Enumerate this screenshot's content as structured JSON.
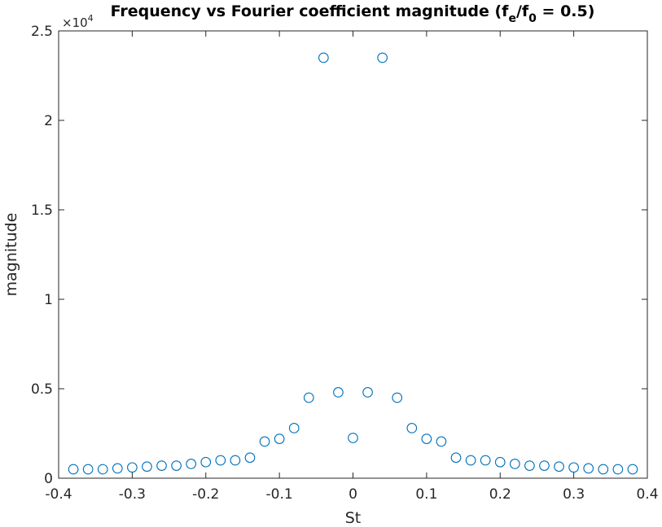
{
  "chart_data": {
    "type": "scatter",
    "title": {
      "main": "Frequency vs Fourier coefficient magnitude (f",
      "sub1": "e",
      "mid": "/f",
      "sub2": "0",
      "end": " = 0.5)"
    },
    "xlabel": "St",
    "ylabel": "magnitude",
    "y_exponent": {
      "base": "×10",
      "power": "4"
    },
    "xlim": [
      -0.4,
      0.4
    ],
    "ylim": [
      0,
      2.5
    ],
    "xticks": [
      -0.4,
      -0.3,
      -0.2,
      -0.1,
      0,
      0.1,
      0.2,
      0.3,
      0.4
    ],
    "xtick_labels": [
      "-0.4",
      "-0.3",
      "-0.2",
      "-0.1",
      "0",
      "0.1",
      "0.2",
      "0.3",
      "0.4"
    ],
    "yticks": [
      0,
      0.5,
      1,
      1.5,
      2,
      2.5
    ],
    "ytick_labels": [
      "0",
      "0.5",
      "1",
      "1.5",
      "2",
      "2.5"
    ],
    "grid": false,
    "marker_color": "#0072BD",
    "series": [
      {
        "x": [
          -0.38,
          -0.36,
          -0.34,
          -0.32,
          -0.3,
          -0.28,
          -0.26,
          -0.24,
          -0.22,
          -0.2,
          -0.18,
          -0.16,
          -0.14,
          -0.12,
          -0.1,
          -0.08,
          -0.06,
          -0.04,
          -0.02,
          0.0,
          0.02,
          0.04,
          0.06,
          0.08,
          0.1,
          0.12,
          0.14,
          0.16,
          0.18,
          0.2,
          0.22,
          0.24,
          0.26,
          0.28,
          0.3,
          0.32,
          0.34,
          0.36,
          0.38
        ],
        "y": [
          0.05,
          0.05,
          0.05,
          0.055,
          0.06,
          0.065,
          0.07,
          0.07,
          0.08,
          0.09,
          0.1,
          0.1,
          0.115,
          0.205,
          0.22,
          0.28,
          0.45,
          2.35,
          0.48,
          0.225,
          0.48,
          2.35,
          0.45,
          0.28,
          0.22,
          0.205,
          0.115,
          0.1,
          0.1,
          0.09,
          0.08,
          0.07,
          0.07,
          0.065,
          0.06,
          0.055,
          0.05,
          0.05,
          0.05
        ]
      }
    ]
  }
}
